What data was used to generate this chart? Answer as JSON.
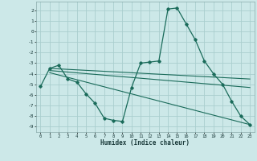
{
  "xlabel": "Humidex (Indice chaleur)",
  "background_color": "#cce8e8",
  "grid_color": "#aacece",
  "line_color": "#1a6b5a",
  "x_ticks": [
    0,
    1,
    2,
    3,
    4,
    5,
    6,
    7,
    8,
    9,
    10,
    11,
    12,
    13,
    14,
    15,
    16,
    17,
    18,
    19,
    20,
    21,
    22,
    23
  ],
  "y_ticks": [
    -9,
    -8,
    -7,
    -6,
    -5,
    -4,
    -3,
    -2,
    -1,
    0,
    1,
    2
  ],
  "ylim": [
    -9.5,
    2.8
  ],
  "xlim": [
    -0.5,
    23.5
  ],
  "line1_x": [
    0,
    1,
    2,
    3,
    4,
    5,
    6,
    7,
    8,
    9,
    10,
    11,
    12,
    13,
    14,
    15,
    16,
    17,
    18,
    19,
    20,
    21,
    22,
    23
  ],
  "line1_y": [
    -5.2,
    -3.5,
    -3.2,
    -4.5,
    -4.8,
    -5.9,
    -6.8,
    -8.2,
    -8.4,
    -8.5,
    -5.3,
    -3.0,
    -2.9,
    -2.8,
    2.1,
    2.2,
    0.7,
    -0.8,
    -2.8,
    -4.0,
    -5.0,
    -6.6,
    -8.0,
    -8.8
  ],
  "line2_x": [
    1,
    23
  ],
  "line2_y": [
    -3.5,
    -4.5
  ],
  "line3_x": [
    1,
    23
  ],
  "line3_y": [
    -3.7,
    -5.3
  ],
  "line4_x": [
    1,
    23
  ],
  "line4_y": [
    -3.9,
    -8.8
  ]
}
